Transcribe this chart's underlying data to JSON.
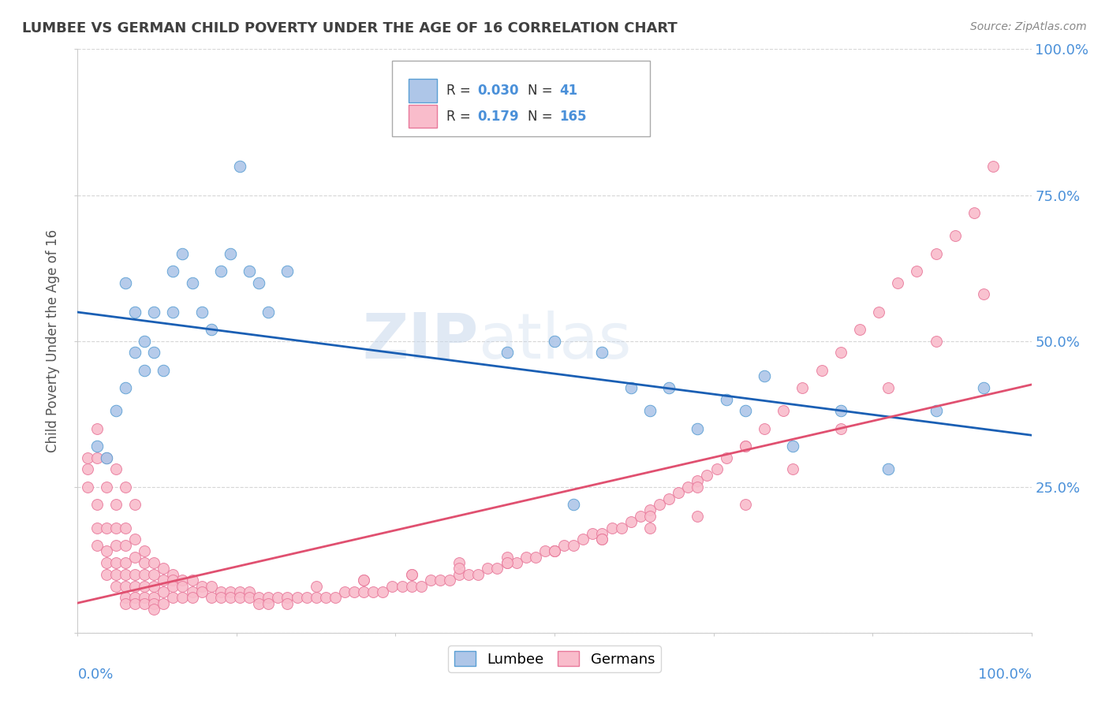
{
  "title": "LUMBEE VS GERMAN CHILD POVERTY UNDER THE AGE OF 16 CORRELATION CHART",
  "source": "Source: ZipAtlas.com",
  "ylabel": "Child Poverty Under the Age of 16",
  "lumbee_R": "0.030",
  "lumbee_N": "41",
  "german_R": "0.179",
  "german_N": "165",
  "lumbee_color": "#aec6e8",
  "german_color": "#f9bccb",
  "lumbee_edge_color": "#5a9fd4",
  "german_edge_color": "#e8789a",
  "lumbee_line_color": "#1a5fb4",
  "german_line_color": "#e05070",
  "title_color": "#404040",
  "axis_label_color": "#4a90d9",
  "watermark_color": "#d8e4f0",
  "background_color": "#ffffff",
  "grid_color": "#cccccc",
  "lumbee_scatter_x": [
    0.02,
    0.03,
    0.04,
    0.05,
    0.05,
    0.06,
    0.06,
    0.07,
    0.07,
    0.08,
    0.08,
    0.09,
    0.1,
    0.1,
    0.11,
    0.12,
    0.13,
    0.14,
    0.15,
    0.16,
    0.17,
    0.18,
    0.19,
    0.2,
    0.22,
    0.45,
    0.5,
    0.52,
    0.55,
    0.58,
    0.6,
    0.62,
    0.65,
    0.68,
    0.7,
    0.72,
    0.75,
    0.8,
    0.85,
    0.9,
    0.95
  ],
  "lumbee_scatter_y": [
    0.32,
    0.3,
    0.38,
    0.6,
    0.42,
    0.55,
    0.48,
    0.5,
    0.45,
    0.55,
    0.48,
    0.45,
    0.55,
    0.62,
    0.65,
    0.6,
    0.55,
    0.52,
    0.62,
    0.65,
    0.8,
    0.62,
    0.6,
    0.55,
    0.62,
    0.48,
    0.5,
    0.22,
    0.48,
    0.42,
    0.38,
    0.42,
    0.35,
    0.4,
    0.38,
    0.44,
    0.32,
    0.38,
    0.28,
    0.38,
    0.42
  ],
  "german_scatter_x": [
    0.01,
    0.01,
    0.01,
    0.02,
    0.02,
    0.02,
    0.02,
    0.03,
    0.03,
    0.03,
    0.03,
    0.03,
    0.04,
    0.04,
    0.04,
    0.04,
    0.04,
    0.04,
    0.05,
    0.05,
    0.05,
    0.05,
    0.05,
    0.05,
    0.05,
    0.06,
    0.06,
    0.06,
    0.06,
    0.06,
    0.06,
    0.07,
    0.07,
    0.07,
    0.07,
    0.07,
    0.07,
    0.08,
    0.08,
    0.08,
    0.08,
    0.08,
    0.08,
    0.09,
    0.09,
    0.09,
    0.09,
    0.1,
    0.1,
    0.1,
    0.1,
    0.11,
    0.11,
    0.11,
    0.12,
    0.12,
    0.12,
    0.13,
    0.13,
    0.14,
    0.14,
    0.15,
    0.15,
    0.16,
    0.16,
    0.17,
    0.17,
    0.18,
    0.18,
    0.19,
    0.19,
    0.2,
    0.2,
    0.21,
    0.22,
    0.22,
    0.23,
    0.24,
    0.25,
    0.26,
    0.27,
    0.28,
    0.29,
    0.3,
    0.31,
    0.32,
    0.33,
    0.34,
    0.35,
    0.36,
    0.37,
    0.38,
    0.39,
    0.4,
    0.41,
    0.42,
    0.43,
    0.44,
    0.45,
    0.46,
    0.47,
    0.48,
    0.49,
    0.5,
    0.51,
    0.52,
    0.53,
    0.54,
    0.55,
    0.56,
    0.57,
    0.58,
    0.59,
    0.6,
    0.61,
    0.62,
    0.63,
    0.64,
    0.65,
    0.66,
    0.67,
    0.68,
    0.7,
    0.72,
    0.74,
    0.76,
    0.78,
    0.8,
    0.82,
    0.84,
    0.86,
    0.88,
    0.9,
    0.92,
    0.94,
    0.96,
    0.3,
    0.35,
    0.4,
    0.45,
    0.5,
    0.55,
    0.6,
    0.65,
    0.7,
    0.75,
    0.8,
    0.85,
    0.9,
    0.95,
    0.25,
    0.3,
    0.35,
    0.4,
    0.45,
    0.5,
    0.55,
    0.6,
    0.65,
    0.7,
    0.02,
    0.03,
    0.04,
    0.05,
    0.06
  ],
  "german_scatter_y": [
    0.3,
    0.28,
    0.25,
    0.3,
    0.22,
    0.18,
    0.15,
    0.25,
    0.18,
    0.14,
    0.12,
    0.1,
    0.22,
    0.18,
    0.15,
    0.12,
    0.1,
    0.08,
    0.18,
    0.15,
    0.12,
    0.1,
    0.08,
    0.06,
    0.05,
    0.16,
    0.13,
    0.1,
    0.08,
    0.06,
    0.05,
    0.14,
    0.12,
    0.1,
    0.08,
    0.06,
    0.05,
    0.12,
    0.1,
    0.08,
    0.06,
    0.05,
    0.04,
    0.11,
    0.09,
    0.07,
    0.05,
    0.1,
    0.09,
    0.08,
    0.06,
    0.09,
    0.08,
    0.06,
    0.09,
    0.07,
    0.06,
    0.08,
    0.07,
    0.08,
    0.06,
    0.07,
    0.06,
    0.07,
    0.06,
    0.07,
    0.06,
    0.07,
    0.06,
    0.06,
    0.05,
    0.06,
    0.05,
    0.06,
    0.06,
    0.05,
    0.06,
    0.06,
    0.06,
    0.06,
    0.06,
    0.07,
    0.07,
    0.07,
    0.07,
    0.07,
    0.08,
    0.08,
    0.08,
    0.08,
    0.09,
    0.09,
    0.09,
    0.1,
    0.1,
    0.1,
    0.11,
    0.11,
    0.12,
    0.12,
    0.13,
    0.13,
    0.14,
    0.14,
    0.15,
    0.15,
    0.16,
    0.17,
    0.17,
    0.18,
    0.18,
    0.19,
    0.2,
    0.21,
    0.22,
    0.23,
    0.24,
    0.25,
    0.26,
    0.27,
    0.28,
    0.3,
    0.32,
    0.35,
    0.38,
    0.42,
    0.45,
    0.48,
    0.52,
    0.55,
    0.6,
    0.62,
    0.65,
    0.68,
    0.72,
    0.8,
    0.09,
    0.1,
    0.12,
    0.13,
    0.14,
    0.16,
    0.18,
    0.2,
    0.22,
    0.28,
    0.35,
    0.42,
    0.5,
    0.58,
    0.08,
    0.09,
    0.1,
    0.11,
    0.12,
    0.14,
    0.16,
    0.2,
    0.25,
    0.32,
    0.35,
    0.3,
    0.28,
    0.25,
    0.22
  ]
}
